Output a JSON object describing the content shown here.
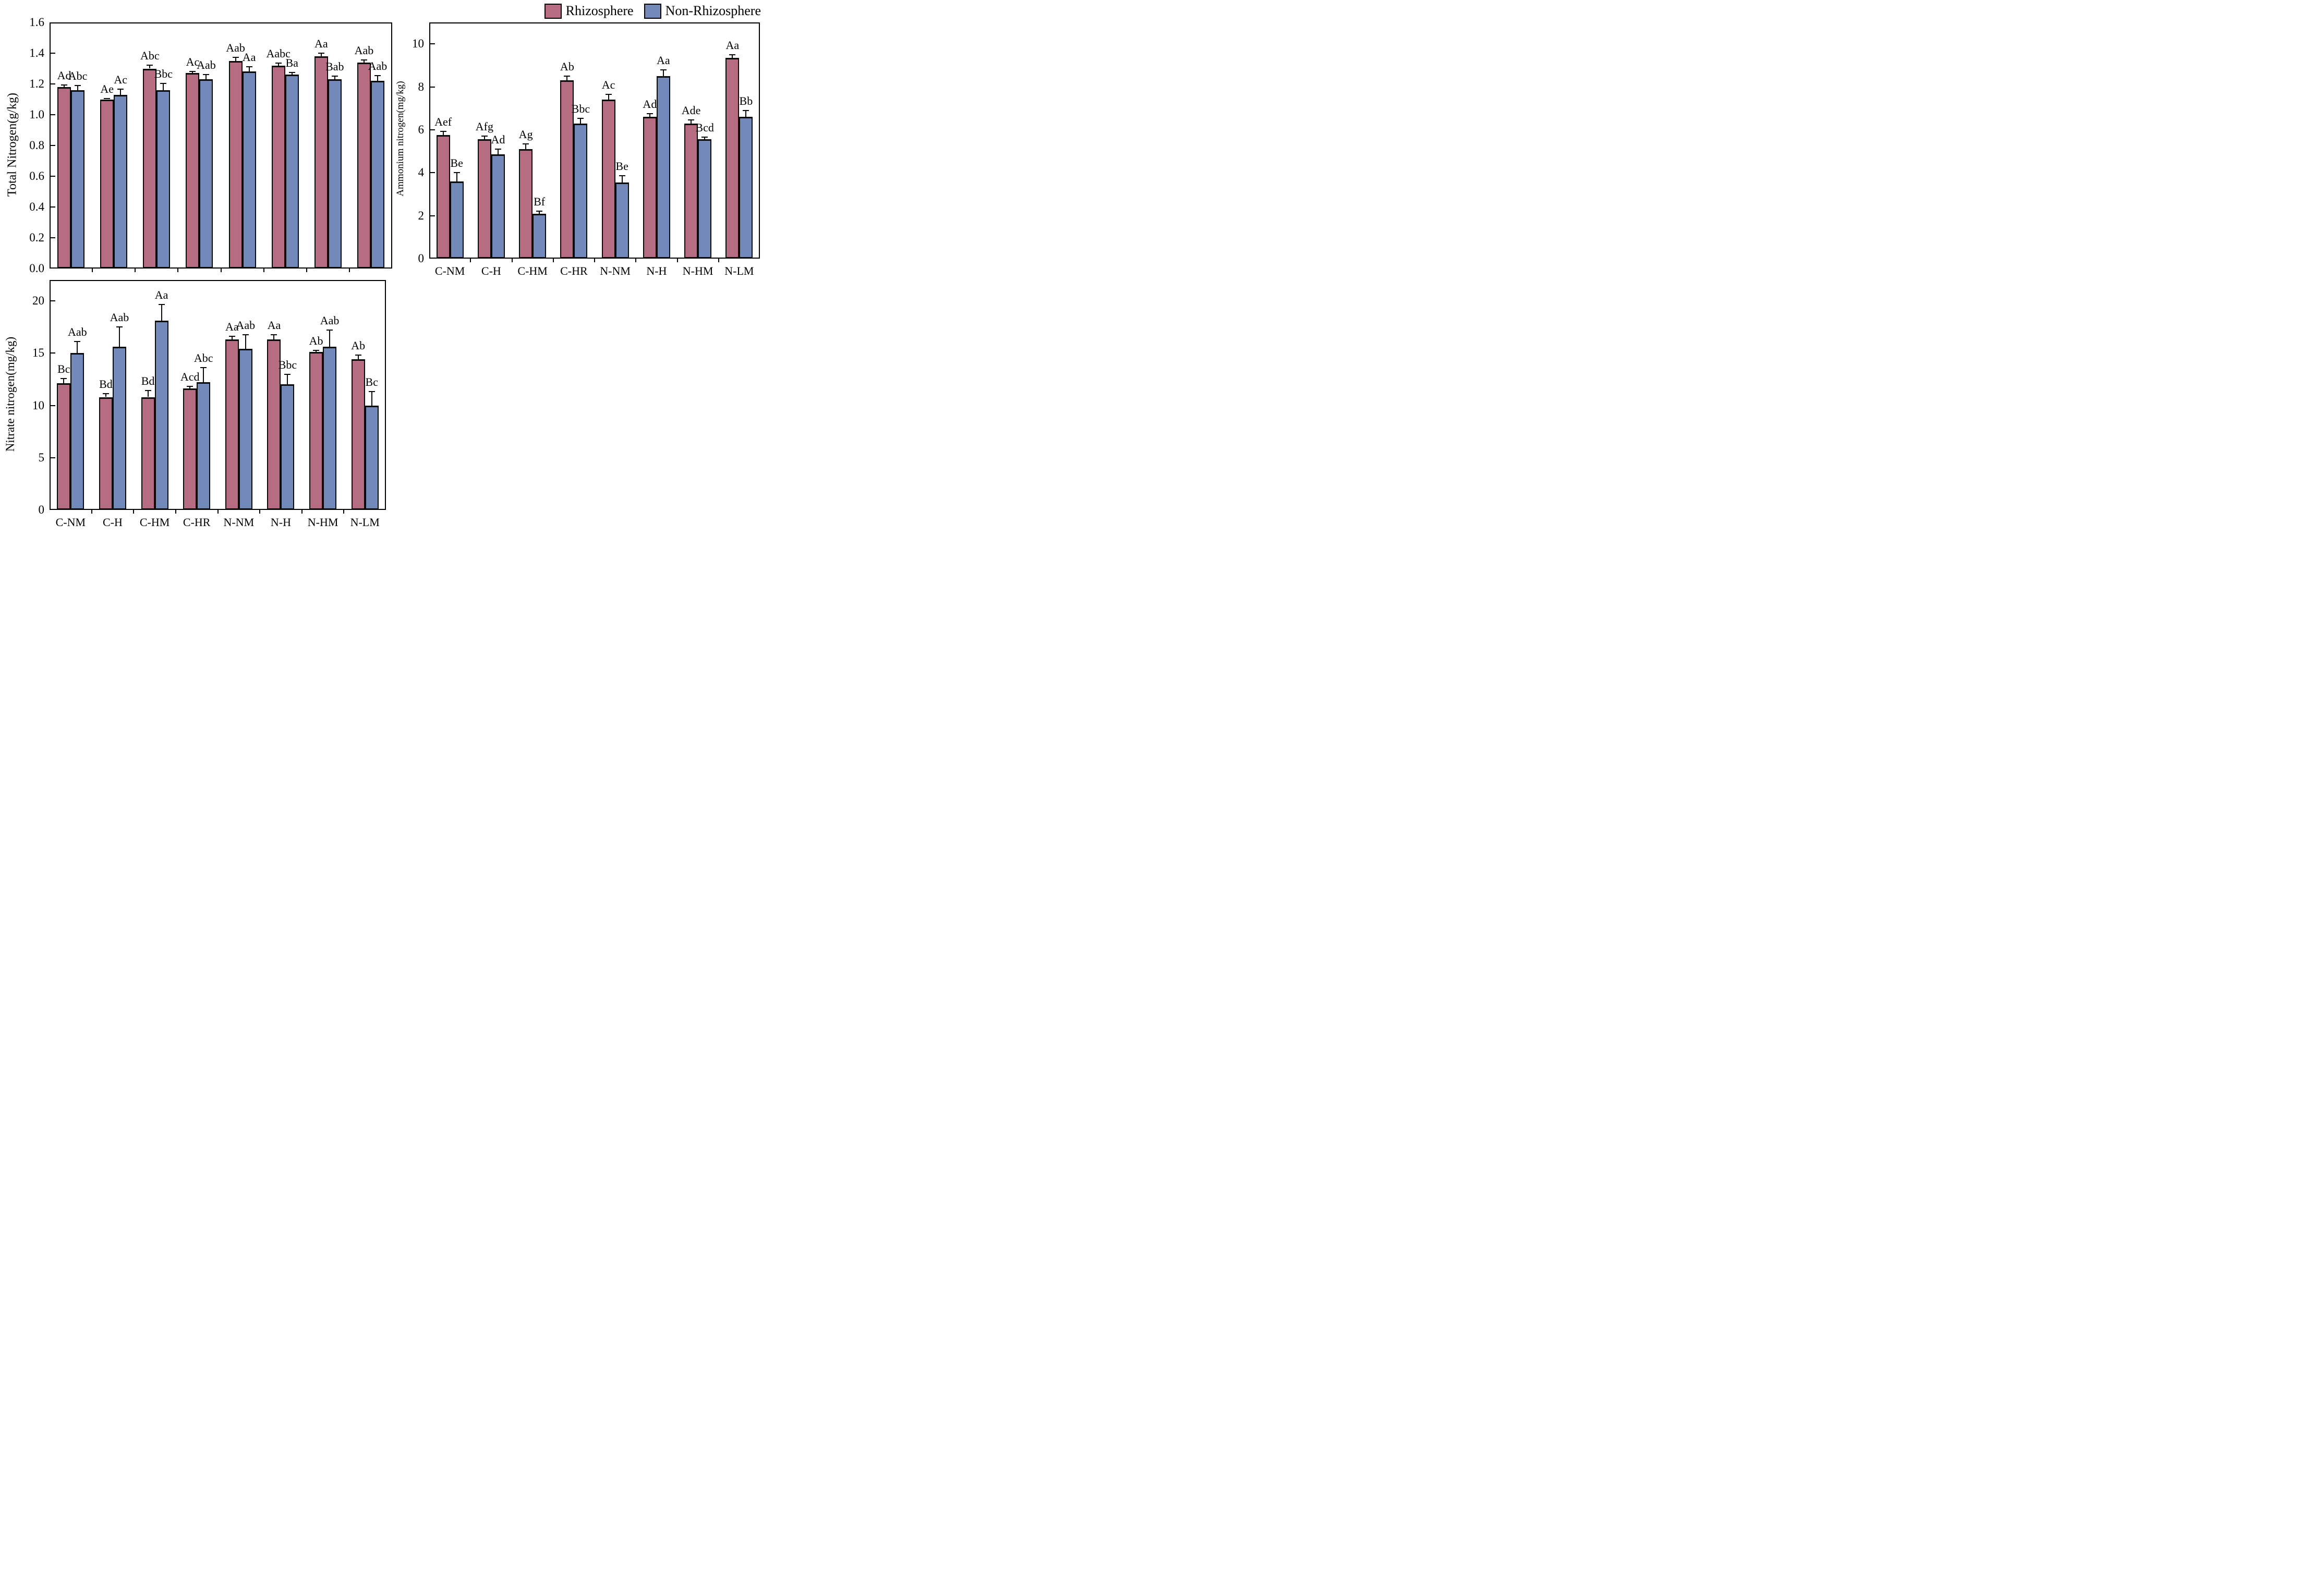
{
  "figure_title": "",
  "legend": {
    "position": "top-right",
    "items": [
      {
        "label": "Rhizosphere",
        "color": "#b76d81"
      },
      {
        "label": "Non-Rhizosphere",
        "color": "#7289ba"
      }
    ]
  },
  "colors": {
    "rhizosphere": "#b76d81",
    "non_rhizosphere": "#7289ba",
    "axis": "#000000",
    "background": "#ffffff"
  },
  "categories": [
    "C-NM",
    "C-H",
    "C-HM",
    "C-HR",
    "N-NM",
    "N-H",
    "N-HM",
    "N-LM"
  ],
  "chart_data": [
    {
      "type": "bar",
      "id": "total-nitrogen",
      "title": "",
      "xlabel": "",
      "ylabel": "Total Nitrogen(g/kg)",
      "ylim": [
        0,
        1.6
      ],
      "yticks": [
        0.0,
        0.2,
        0.4,
        0.6,
        0.8,
        1.0,
        1.2,
        1.4,
        1.6
      ],
      "ytick_decimals": 1,
      "grid": false,
      "show_xticklabels": false,
      "categories": [
        "C-NM",
        "C-H",
        "C-HM",
        "C-HR",
        "N-NM",
        "N-H",
        "N-HM",
        "N-LM"
      ],
      "series": [
        {
          "name": "Rhizosphere",
          "values": [
            1.18,
            1.1,
            1.3,
            1.27,
            1.35,
            1.32,
            1.38,
            1.34
          ],
          "errors": [
            0.012,
            0.006,
            0.022,
            0.01,
            0.022,
            0.016,
            0.02,
            0.016
          ],
          "sig_labels": [
            "Ad",
            "Ae",
            "Abc",
            "Ac",
            "Aab",
            "Aabc",
            "Aa",
            "Aab"
          ]
        },
        {
          "name": "Non-Rhizosphere",
          "values": [
            1.16,
            1.13,
            1.16,
            1.23,
            1.28,
            1.26,
            1.23,
            1.22
          ],
          "errors": [
            0.03,
            0.035,
            0.045,
            0.03,
            0.033,
            0.013,
            0.02,
            0.035
          ],
          "sig_labels": [
            "Abc",
            "Ac",
            "Bbc",
            "Aab",
            "Aa",
            "Ba",
            "Bab",
            "Aab"
          ]
        }
      ]
    },
    {
      "type": "bar",
      "id": "ammonium-nitrogen",
      "title": "",
      "xlabel": "",
      "ylabel": "Ammonium nitrogen(mg/kg)",
      "ylim": [
        0,
        11
      ],
      "yticks": [
        0,
        2,
        4,
        6,
        8,
        10
      ],
      "ytick_decimals": 0,
      "grid": false,
      "show_xticklabels": true,
      "categories": [
        "C-NM",
        "C-H",
        "C-HM",
        "C-HR",
        "N-NM",
        "N-H",
        "N-HM",
        "N-LM"
      ],
      "series": [
        {
          "name": "Rhizosphere",
          "values": [
            5.75,
            5.55,
            5.1,
            8.3,
            7.4,
            6.6,
            6.3,
            9.35
          ],
          "errors": [
            0.18,
            0.15,
            0.25,
            0.2,
            0.25,
            0.15,
            0.15,
            0.15
          ],
          "sig_labels": [
            "Aef",
            "Afg",
            "Ag",
            "Ab",
            "Ac",
            "Ad",
            "Ade",
            "Aa"
          ]
        },
        {
          "name": "Non-Rhizosphere",
          "values": [
            3.6,
            4.85,
            2.1,
            6.3,
            3.55,
            8.5,
            5.55,
            6.6
          ],
          "errors": [
            0.4,
            0.25,
            0.12,
            0.22,
            0.3,
            0.3,
            0.1,
            0.3
          ],
          "sig_labels": [
            "Be",
            "Ad",
            "Bf",
            "Bbc",
            "Be",
            "Aa",
            "Bcd",
            "Bb"
          ]
        }
      ]
    },
    {
      "type": "bar",
      "id": "nitrate-nitrogen",
      "title": "",
      "xlabel": "",
      "ylabel": "Nitrate nitrogen(mg/kg)",
      "ylim": [
        0,
        22
      ],
      "yticks": [
        0,
        5,
        10,
        15,
        20
      ],
      "ytick_decimals": 0,
      "grid": false,
      "show_xticklabels": true,
      "categories": [
        "C-NM",
        "C-H",
        "C-HM",
        "C-HR",
        "N-NM",
        "N-H",
        "N-HM",
        "N-LM"
      ],
      "series": [
        {
          "name": "Rhizosphere",
          "values": [
            12.1,
            10.8,
            10.8,
            11.6,
            16.3,
            16.3,
            15.1,
            14.4
          ],
          "errors": [
            0.45,
            0.3,
            0.6,
            0.2,
            0.3,
            0.45,
            0.15,
            0.4
          ],
          "sig_labels": [
            "Bc",
            "Bd",
            "Bd",
            "Acd",
            "Aa",
            "Aa",
            "Ab",
            "Ab"
          ]
        },
        {
          "name": "Non-Rhizosphere",
          "values": [
            15.0,
            15.6,
            18.1,
            12.2,
            15.4,
            12.0,
            15.6,
            10.0
          ],
          "errors": [
            1.1,
            1.9,
            1.55,
            1.4,
            1.35,
            0.95,
            1.6,
            1.3
          ],
          "sig_labels": [
            "Aab",
            "Aab",
            "Aa",
            "Abc",
            "Aab",
            "Bbc",
            "Aab",
            "Bc"
          ]
        }
      ]
    }
  ]
}
